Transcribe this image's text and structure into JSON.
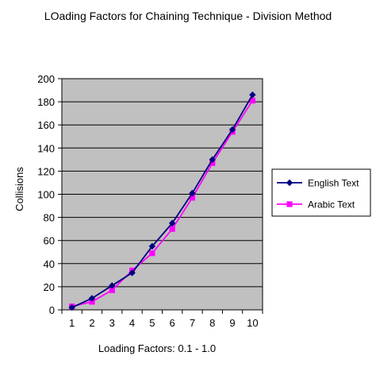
{
  "chart_data": {
    "type": "line",
    "title": "LOading Factors for Chaining Technique - Division Method",
    "xlabel": "Loading Factors: 0.1 - 1.0",
    "ylabel": "Collisions",
    "categories": [
      "1",
      "2",
      "3",
      "4",
      "5",
      "6",
      "7",
      "8",
      "9",
      "10"
    ],
    "ylim": [
      0,
      200
    ],
    "yticks": [
      "0",
      "20",
      "40",
      "60",
      "80",
      "100",
      "120",
      "140",
      "160",
      "180",
      "200"
    ],
    "grid": true,
    "legend_position": "right",
    "series": [
      {
        "name": "English Text",
        "color": "#000080",
        "marker": "diamond",
        "values": [
          2,
          10,
          21,
          32,
          55,
          75,
          101,
          130,
          156,
          186
        ]
      },
      {
        "name": "Arabic Text",
        "color": "#ff00ff",
        "marker": "square",
        "values": [
          3,
          7,
          17,
          34,
          49,
          70,
          97,
          127,
          154,
          181
        ]
      }
    ],
    "plot_background": "#c0c0c0"
  }
}
